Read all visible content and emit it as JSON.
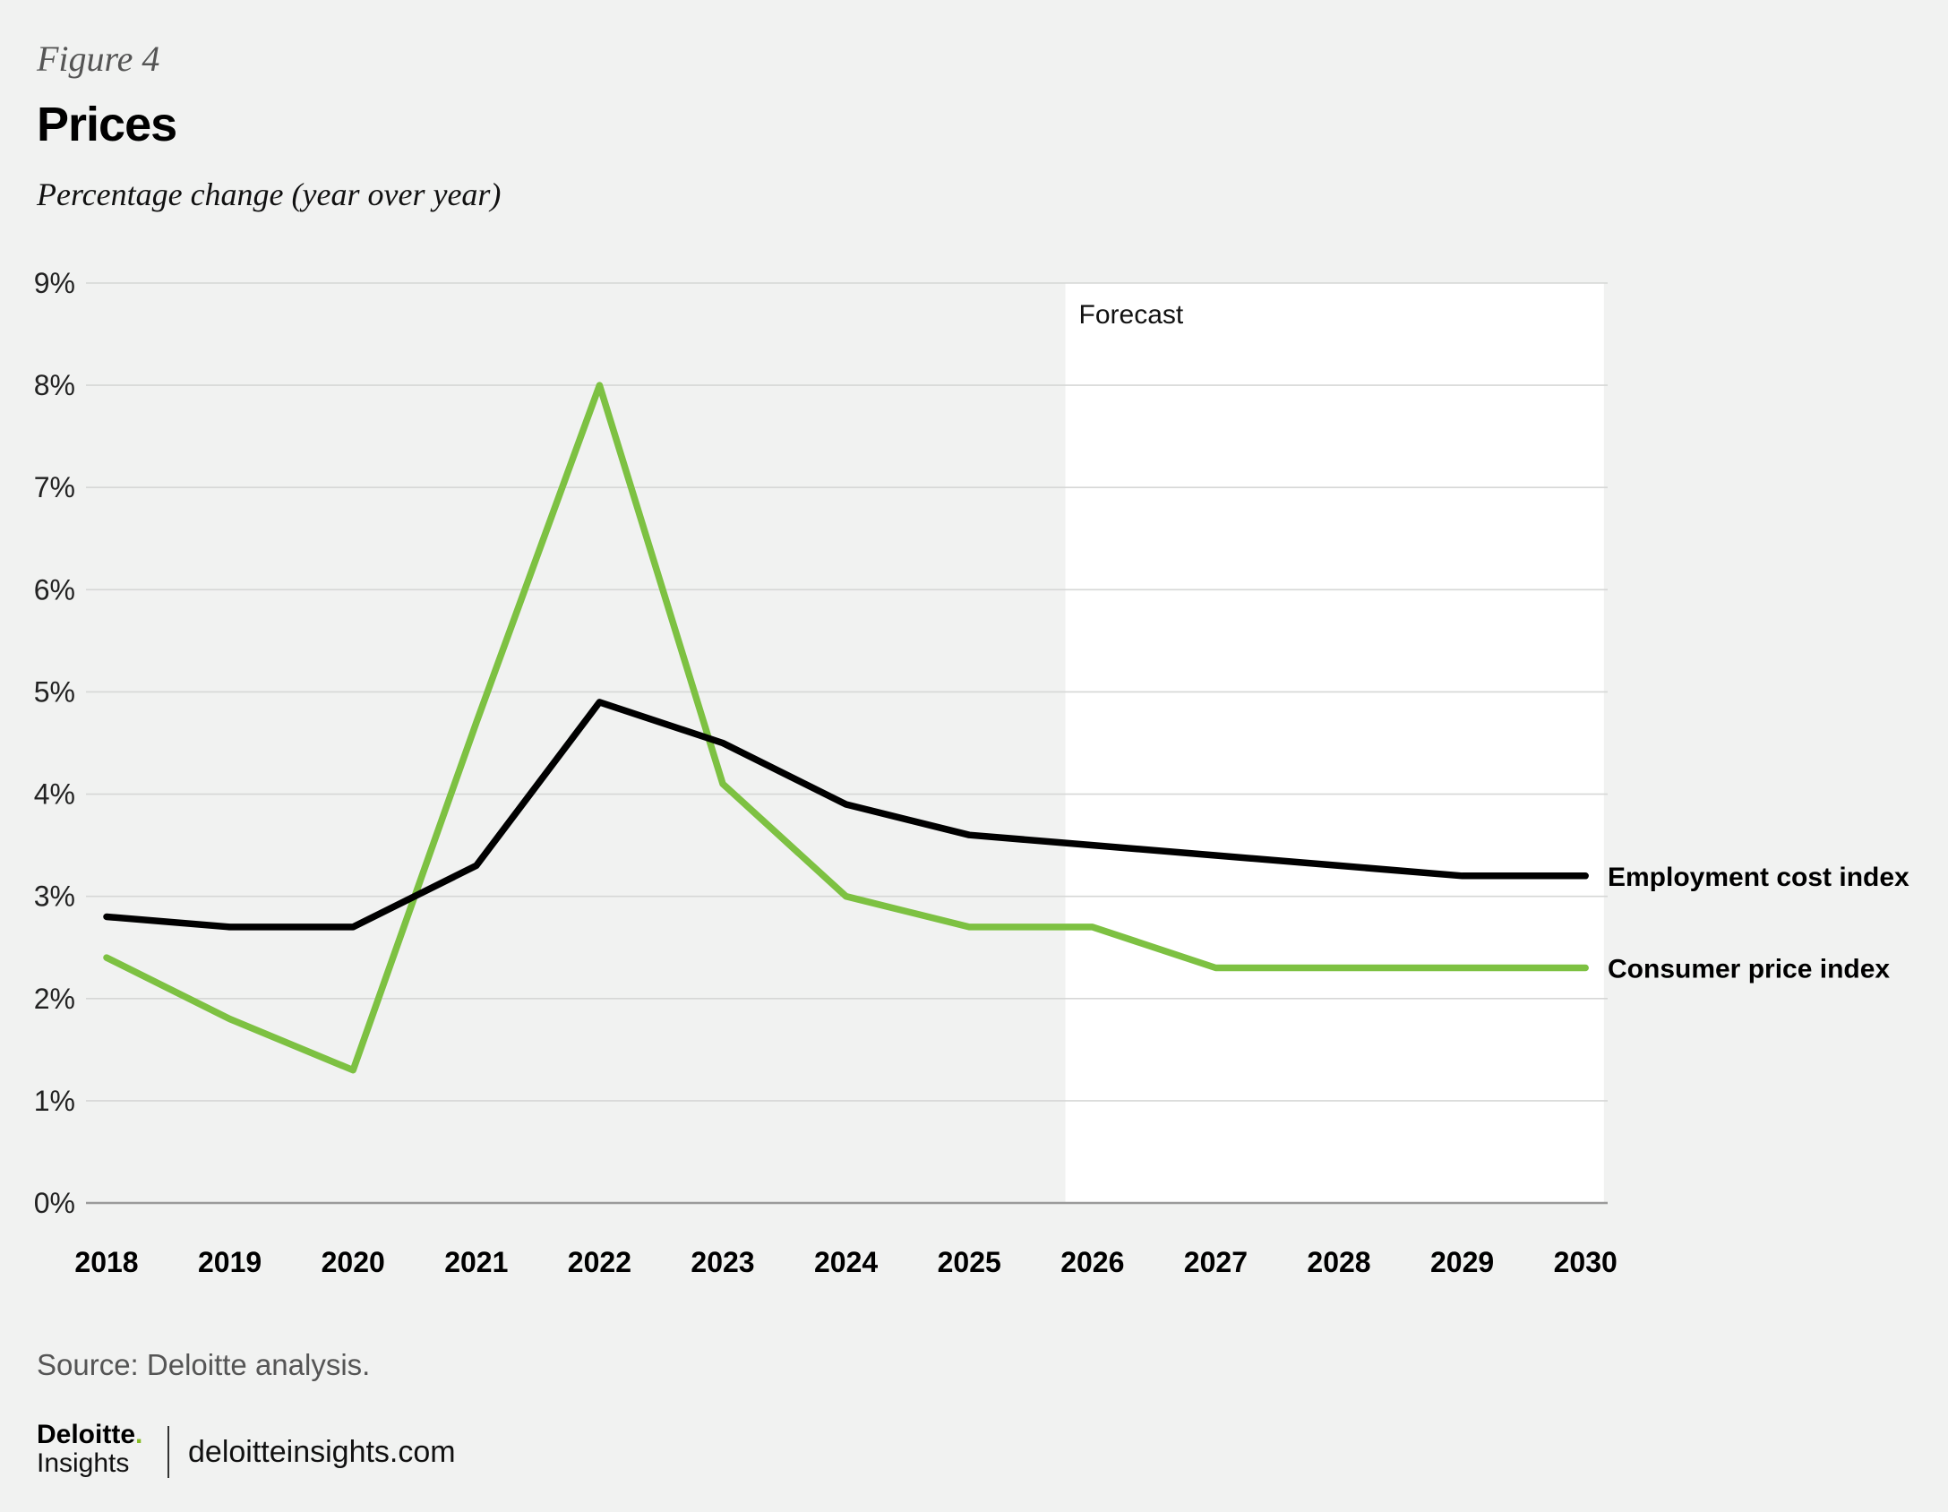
{
  "figure_label": "Figure 4",
  "source": "Source: Deloitte analysis.",
  "logo": {
    "name": "Deloitte",
    "sub": "Insights"
  },
  "site": "deloitteinsights.com",
  "colors": {
    "background": "#f1f2f1",
    "forecast_band": "#ffffff",
    "employment_cost_index": "#000000",
    "consumer_price_index": "#7dc142",
    "gridline": "#d6d7d6",
    "axis": "#9a9a9a"
  },
  "chart_data": {
    "type": "line",
    "title": "Prices",
    "subtitle": "Percentage change (year over year)",
    "x": [
      "2018",
      "2019",
      "2020",
      "2021",
      "2022",
      "2023",
      "2024",
      "2025",
      "2026",
      "2027",
      "2028",
      "2029",
      "2030"
    ],
    "ylim": [
      0,
      9
    ],
    "yticks": [
      0,
      1,
      2,
      3,
      4,
      5,
      6,
      7,
      8,
      9
    ],
    "ytick_labels": [
      "0%",
      "1%",
      "2%",
      "3%",
      "4%",
      "5%",
      "6%",
      "7%",
      "8%",
      "9%"
    ],
    "grid": true,
    "forecast": {
      "label": "Forecast",
      "start": 2025.78,
      "end": 2030.15
    },
    "series": [
      {
        "name": "Employment cost index",
        "color": "#000000",
        "values": [
          2.8,
          2.7,
          2.7,
          3.3,
          4.9,
          4.5,
          3.9,
          3.6,
          3.5,
          3.4,
          3.3,
          3.2,
          3.2
        ]
      },
      {
        "name": "Consumer price index",
        "color": "#7dc142",
        "values": [
          2.4,
          1.8,
          1.3,
          4.7,
          8.0,
          4.1,
          3.0,
          2.7,
          2.7,
          2.3,
          2.3,
          2.3,
          2.3
        ]
      }
    ]
  }
}
